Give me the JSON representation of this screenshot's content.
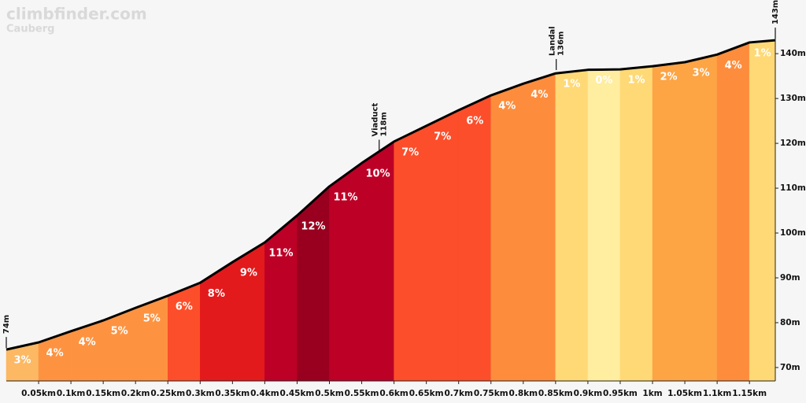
{
  "chart_data": {
    "type": "climb-profile",
    "title": "climbfinder.com",
    "subtitle": "Cauberg",
    "bins": [
      0,
      0.05,
      0.1,
      0.15,
      0.2,
      0.25,
      0.3,
      0.35,
      0.4,
      0.45,
      0.5,
      0.55,
      0.6,
      0.65,
      0.7,
      0.75,
      0.8,
      0.85,
      0.9,
      0.95,
      1.0,
      1.05,
      1.1,
      1.15,
      1.19
    ],
    "values": [
      74,
      75.6,
      78.1,
      80.5,
      83.3,
      86,
      88.9,
      93.5,
      97.9,
      103.9,
      110.4,
      115.6,
      120.4,
      123.9,
      127.4,
      130.7,
      133.3,
      135.6,
      136.4,
      136.5,
      137.2,
      138.1,
      139.8,
      142.5,
      143
    ],
    "line_color": "#000000",
    "segments": {
      "values": [
        3,
        4,
        4,
        5,
        5,
        6,
        8,
        9,
        11,
        12,
        11,
        10,
        7,
        7,
        6,
        4,
        4,
        1,
        0,
        1,
        2,
        3,
        4,
        1
      ],
      "value_labels": [
        "3%",
        "4%",
        "4%",
        "5%",
        "5%",
        "6%",
        "8%",
        "9%",
        "11%",
        "12%",
        "11%",
        "10%",
        "7%",
        "7%",
        "6%",
        "4%",
        "4%",
        "1%",
        "0%",
        "1%",
        "2%",
        "3%",
        "4%",
        "1%"
      ],
      "colors": [
        "#fdb863",
        "#fd9341",
        "#fd9341",
        "#fd9341",
        "#fd9341",
        "#fc4e2a",
        "#e31a1c",
        "#e31a1c",
        "#bd0026",
        "#99001f",
        "#bd0026",
        "#bd0026",
        "#fc4e2a",
        "#fc4e2a",
        "#fc4e2a",
        "#fd8d3c",
        "#fd8d3c",
        "#fed976",
        "#ffeda0",
        "#fed976",
        "#fda445",
        "#fda445",
        "#fd8d3c",
        "#fed976"
      ]
    },
    "annotations": [
      {
        "x": 0,
        "value": 74,
        "label": "74m"
      },
      {
        "x": 0.577,
        "value": 118,
        "name": "Viaduct",
        "label": "118m"
      },
      {
        "x": 0.851,
        "value": 136,
        "name": "Landal",
        "label": "136m"
      },
      {
        "x": 1.19,
        "value": 143,
        "label": "143m"
      }
    ],
    "xlim": [
      0,
      1.19
    ],
    "ylim": [
      67,
      146
    ],
    "xticks": [
      {
        "value": 0.05,
        "label": "0.05km"
      },
      {
        "value": 0.1,
        "label": "0.1km"
      },
      {
        "value": 0.15,
        "label": "0.15km"
      },
      {
        "value": 0.2,
        "label": "0.2km"
      },
      {
        "value": 0.25,
        "label": "0.25km"
      },
      {
        "value": 0.3,
        "label": "0.3km"
      },
      {
        "value": 0.35,
        "label": "0.35km"
      },
      {
        "value": 0.4,
        "label": "0.4km"
      },
      {
        "value": 0.45,
        "label": "0.45km"
      },
      {
        "value": 0.5,
        "label": "0.5km"
      },
      {
        "value": 0.55,
        "label": "0.55km"
      },
      {
        "value": 0.6,
        "label": "0.6km"
      },
      {
        "value": 0.65,
        "label": "0.65km"
      },
      {
        "value": 0.7,
        "label": "0.7km"
      },
      {
        "value": 0.75,
        "label": "0.75km"
      },
      {
        "value": 0.8,
        "label": "0.8km"
      },
      {
        "value": 0.85,
        "label": "0.85km"
      },
      {
        "value": 0.9,
        "label": "0.9km"
      },
      {
        "value": 0.95,
        "label": "0.95km"
      },
      {
        "value": 1,
        "label": "1km"
      },
      {
        "value": 1.05,
        "label": "1.05km"
      },
      {
        "value": 1.1,
        "label": "1.1km"
      },
      {
        "value": 1.15,
        "label": "1.15km"
      }
    ],
    "yticks": [
      {
        "value": 70,
        "label": "70m"
      },
      {
        "value": 80,
        "label": "80m"
      },
      {
        "value": 90,
        "label": "90m"
      },
      {
        "value": 100,
        "label": "100m"
      },
      {
        "value": 110,
        "label": "110m"
      },
      {
        "value": 120,
        "label": "120m"
      },
      {
        "value": 130,
        "label": "130m"
      },
      {
        "value": 140,
        "label": "140m"
      }
    ]
  }
}
